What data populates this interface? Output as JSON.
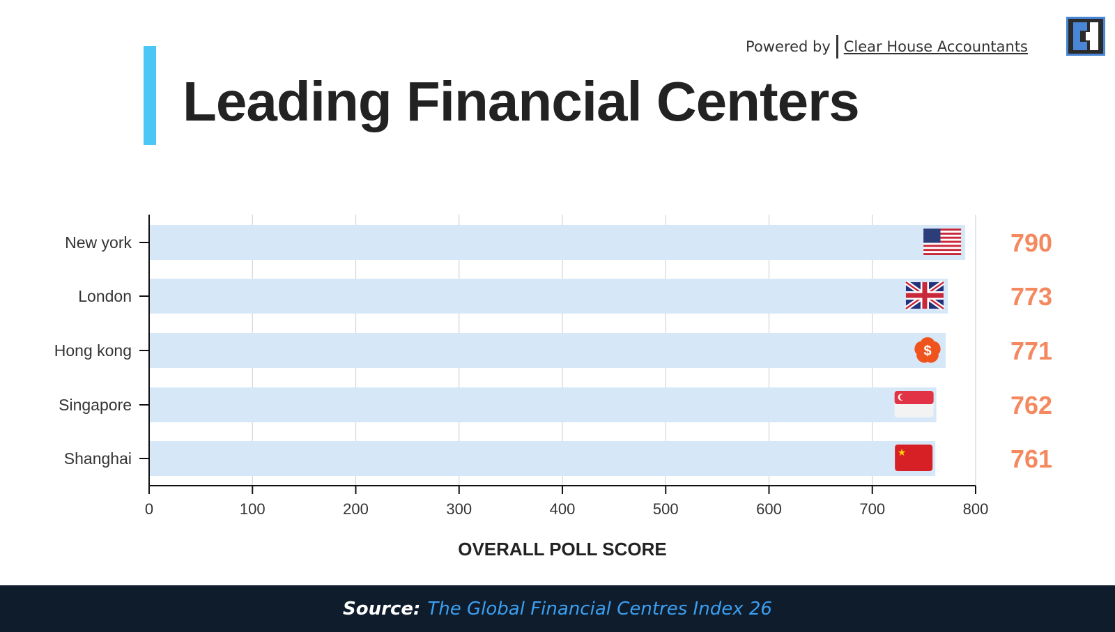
{
  "header": {
    "title": "Leading Financial Centers",
    "powered_by": "Powered by",
    "brand": "Clear House Accountants",
    "accent_color": "#4cc6f5"
  },
  "footer": {
    "source_label": "Source:",
    "source_text": "The Global Financial Centres Index 26",
    "background_color": "#0e1c2c",
    "link_color": "#3c9ff0"
  },
  "chart_data": {
    "type": "bar",
    "orientation": "horizontal",
    "categories": [
      "New york",
      "London",
      "Hong kong",
      "Singapore",
      "Shanghai"
    ],
    "values": [
      790,
      773,
      771,
      762,
      761
    ],
    "flags": [
      "usa-flag-icon",
      "uk-flag-icon",
      "hong-kong-flag-icon",
      "singapore-flag-icon",
      "china-flag-icon"
    ],
    "xlabel": "OVERALL POLL SCORE",
    "ylabel": "",
    "xlim": [
      0,
      800
    ],
    "xticks": [
      0,
      100,
      200,
      300,
      400,
      500,
      600,
      700,
      800
    ],
    "grid": true,
    "bar_color": "#d6e8f8",
    "value_label_color": "#f4895f"
  }
}
